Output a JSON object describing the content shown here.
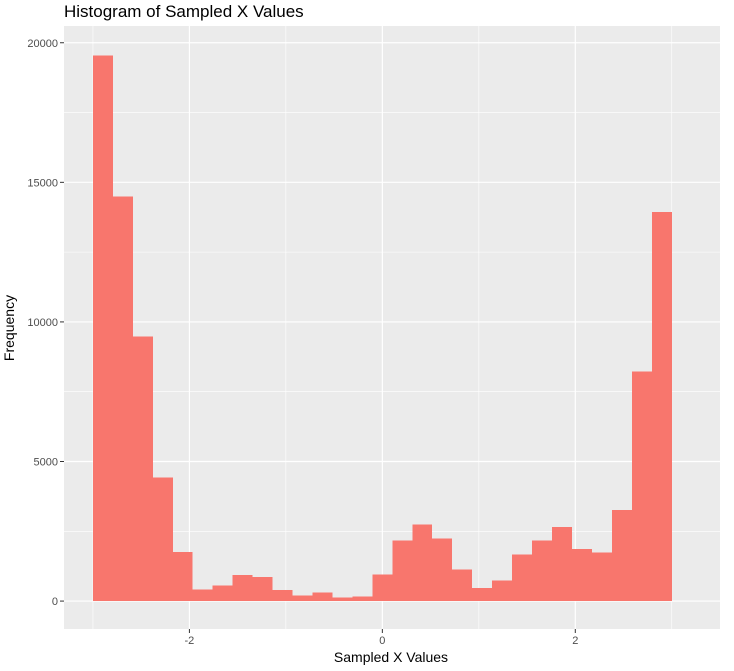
{
  "chart_data": {
    "type": "bar",
    "title": "Histogram of Sampled X Values",
    "xlabel": "Sampled X Values",
    "ylabel": "Frequency",
    "xlim": [
      -3.3,
      3.5
    ],
    "ylim": [
      -1000,
      20600
    ],
    "x_ticks": [
      {
        "value": -2,
        "label": "-2"
      },
      {
        "value": 0,
        "label": "0"
      },
      {
        "value": 2,
        "label": "2"
      }
    ],
    "y_ticks": [
      {
        "value": 0,
        "label": "0"
      },
      {
        "value": 5000,
        "label": "5000"
      },
      {
        "value": 10000,
        "label": "10000"
      },
      {
        "value": 15000,
        "label": "15000"
      },
      {
        "value": 20000,
        "label": "20000"
      }
    ],
    "bin_width": 0.2069,
    "bins": [
      {
        "x0": -3.0,
        "x1": -2.793,
        "count": 19550
      },
      {
        "x0": -2.793,
        "x1": -2.586,
        "count": 14500
      },
      {
        "x0": -2.586,
        "x1": -2.379,
        "count": 9480
      },
      {
        "x0": -2.379,
        "x1": -2.172,
        "count": 4430
      },
      {
        "x0": -2.172,
        "x1": -1.966,
        "count": 1750
      },
      {
        "x0": -1.966,
        "x1": -1.759,
        "count": 420
      },
      {
        "x0": -1.759,
        "x1": -1.552,
        "count": 560
      },
      {
        "x0": -1.552,
        "x1": -1.345,
        "count": 930
      },
      {
        "x0": -1.345,
        "x1": -1.138,
        "count": 860
      },
      {
        "x0": -1.138,
        "x1": -0.931,
        "count": 390
      },
      {
        "x0": -0.931,
        "x1": -0.724,
        "count": 200
      },
      {
        "x0": -0.724,
        "x1": -0.517,
        "count": 310
      },
      {
        "x0": -0.517,
        "x1": -0.31,
        "count": 130
      },
      {
        "x0": -0.31,
        "x1": -0.103,
        "count": 170
      },
      {
        "x0": -0.103,
        "x1": 0.103,
        "count": 960
      },
      {
        "x0": 0.103,
        "x1": 0.31,
        "count": 2170
      },
      {
        "x0": 0.31,
        "x1": 0.517,
        "count": 2750
      },
      {
        "x0": 0.517,
        "x1": 0.724,
        "count": 2240
      },
      {
        "x0": 0.724,
        "x1": 0.931,
        "count": 1130
      },
      {
        "x0": 0.931,
        "x1": 1.138,
        "count": 460
      },
      {
        "x0": 1.138,
        "x1": 1.345,
        "count": 740
      },
      {
        "x0": 1.345,
        "x1": 1.552,
        "count": 1670
      },
      {
        "x0": 1.552,
        "x1": 1.759,
        "count": 2170
      },
      {
        "x0": 1.759,
        "x1": 1.966,
        "count": 2650
      },
      {
        "x0": 1.966,
        "x1": 2.172,
        "count": 1860
      },
      {
        "x0": 2.172,
        "x1": 2.379,
        "count": 1740
      },
      {
        "x0": 2.379,
        "x1": 2.586,
        "count": 3260
      },
      {
        "x0": 2.586,
        "x1": 2.793,
        "count": 8230
      },
      {
        "x0": 2.793,
        "x1": 3.0,
        "count": 13930
      }
    ],
    "grid": true,
    "legend": "none",
    "colors": {
      "bar": "#f8766d",
      "panel": "#ebebeb",
      "grid_major": "#ffffff",
      "axis_text": "#4d4d4d",
      "tick": "#333333"
    }
  }
}
